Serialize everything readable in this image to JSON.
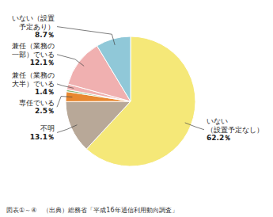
{
  "chart_data": {
    "type": "pie",
    "categories": [
      "いない\n（設置予定なし）",
      "不明",
      "専任でいる",
      null,
      "兼任（業務の\n大半）でいる",
      "兼任（業務の\n一部）でいる",
      "いない（設置\n予定あり）"
    ],
    "values": [
      62.2,
      13.1,
      2.5,
      0.5,
      1.4,
      12.1,
      8.7
    ],
    "value_labels": [
      "62.2％",
      "13.1％",
      "2.5％",
      null,
      "1.4％",
      "12.1％",
      "8.7％"
    ],
    "colors": [
      "#f5e878",
      "#b8a898",
      "#e88830",
      "#88b878",
      "#f0b0b0",
      "#f0b0b0",
      "#90c8d8"
    ],
    "data_labels": true,
    "annotations": [
      "図表①～④　（出典）総務省「平成16年通信利用動向調査」"
    ]
  }
}
